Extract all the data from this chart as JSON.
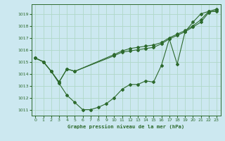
{
  "title": "Graphe pression niveau de la mer (hPa)",
  "background_color": "#cce8f0",
  "grid_color": "#b0d8c8",
  "line_color": "#2d6a2d",
  "xlim": [
    -0.5,
    23.5
  ],
  "ylim": [
    1010.5,
    1019.8
  ],
  "yticks": [
    1011,
    1012,
    1013,
    1014,
    1015,
    1016,
    1017,
    1018,
    1019
  ],
  "xticks": [
    0,
    1,
    2,
    3,
    4,
    5,
    6,
    7,
    8,
    9,
    10,
    11,
    12,
    13,
    14,
    15,
    16,
    17,
    18,
    19,
    20,
    21,
    22,
    23
  ],
  "series": [
    {
      "x": [
        0,
        1,
        2,
        3,
        4,
        5,
        6,
        7,
        8,
        9,
        10,
        11,
        12,
        13,
        14,
        15,
        16,
        17,
        18,
        19,
        20,
        21,
        22,
        23
      ],
      "y": [
        1015.3,
        1015.0,
        1014.2,
        1013.2,
        1012.2,
        1011.6,
        1011.0,
        1011.0,
        1011.2,
        1011.5,
        1012.0,
        1012.7,
        1013.1,
        1013.1,
        1013.4,
        1013.3,
        1014.7,
        1016.9,
        1014.8,
        1017.5,
        1018.3,
        1019.0,
        1019.2,
        1019.2
      ]
    },
    {
      "x": [
        0,
        1,
        2,
        3,
        4,
        5,
        10,
        11,
        12,
        13,
        14,
        15,
        16,
        17,
        18,
        19,
        20,
        21,
        22,
        23
      ],
      "y": [
        1015.3,
        1015.0,
        1014.2,
        1013.3,
        1014.4,
        1014.2,
        1015.5,
        1015.8,
        1015.9,
        1016.0,
        1016.1,
        1016.2,
        1016.5,
        1016.9,
        1017.2,
        1017.5,
        1017.9,
        1018.3,
        1019.1,
        1019.3
      ]
    },
    {
      "x": [
        0,
        1,
        2,
        3,
        4,
        5,
        10,
        11,
        12,
        13,
        14,
        15,
        16,
        17,
        18,
        19,
        20,
        21,
        22,
        23
      ],
      "y": [
        1015.3,
        1015.0,
        1014.2,
        1013.3,
        1014.4,
        1014.2,
        1015.6,
        1015.9,
        1016.1,
        1016.2,
        1016.3,
        1016.4,
        1016.6,
        1017.0,
        1017.3,
        1017.6,
        1018.0,
        1018.5,
        1019.2,
        1019.4
      ]
    }
  ]
}
